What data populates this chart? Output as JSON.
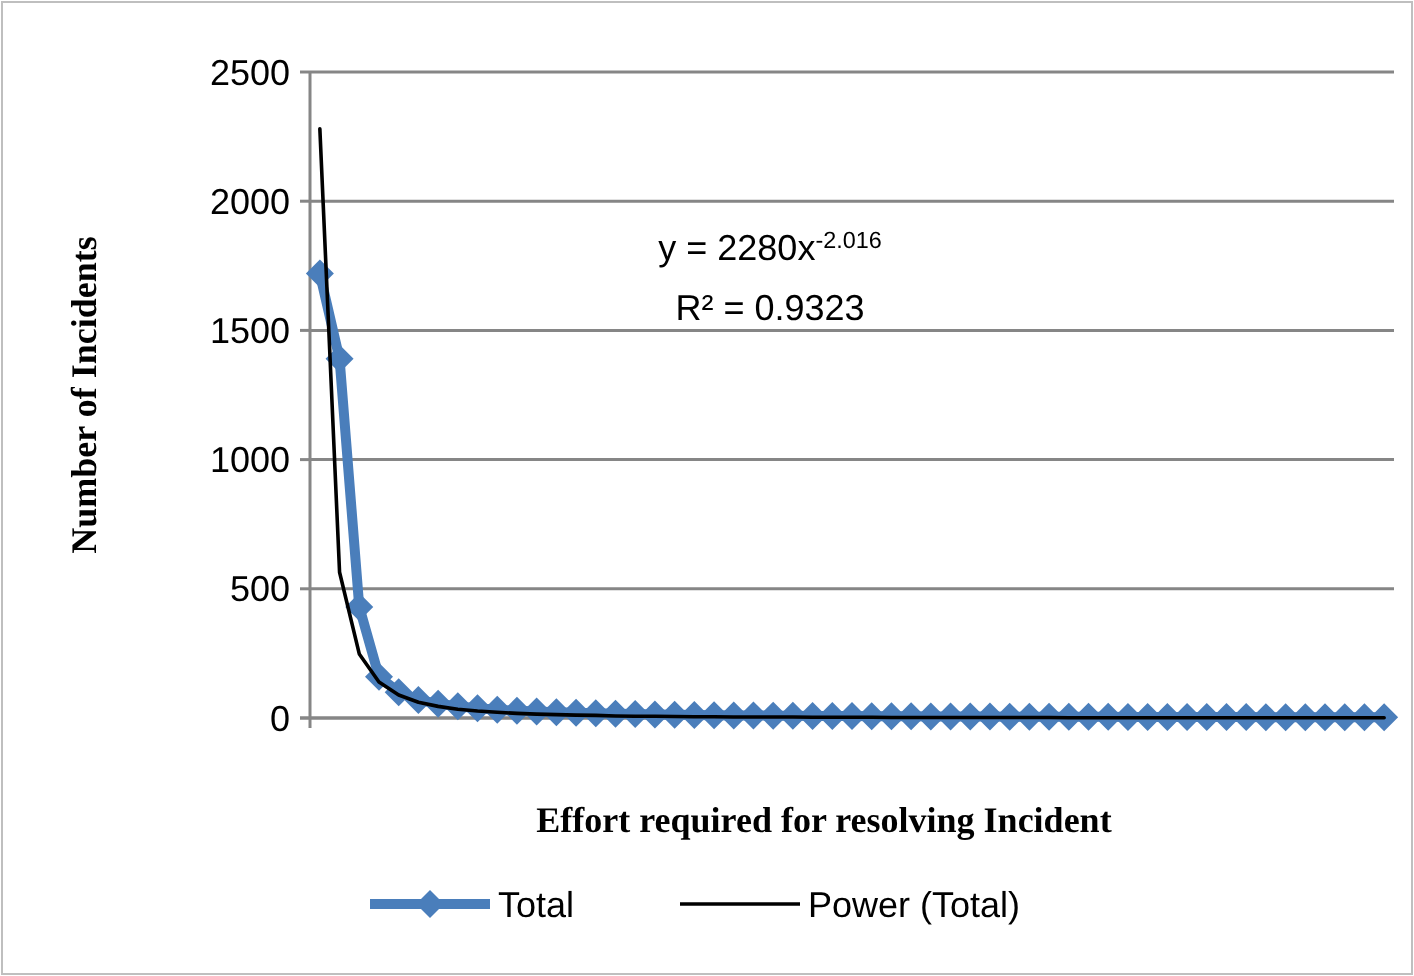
{
  "chart_data": {
    "type": "line",
    "xlabel": "Effort required for resolving Incident",
    "ylabel": "Number of Incidents",
    "categories": [
      null,
      null,
      null,
      null,
      null,
      null,
      null,
      null,
      null,
      null,
      null,
      null,
      null,
      null,
      null,
      null,
      null,
      null,
      null,
      null,
      null,
      null,
      null,
      null,
      null,
      null,
      null,
      null,
      null,
      null,
      null,
      null,
      null,
      null,
      null,
      null,
      null,
      null,
      null,
      null,
      null,
      null,
      null,
      null,
      null,
      null,
      null,
      null,
      null,
      null,
      null,
      null,
      null,
      null,
      null
    ],
    "ylim": [
      0,
      2500
    ],
    "yticks": [
      0,
      500,
      1000,
      1500,
      2000,
      2500
    ],
    "grid": "y",
    "legend": "bottom",
    "tick_labels": "y",
    "annotations": [
      "y = 2280x$^{-2.016}$",
      "R² = 0.9323"
    ],
    "series": [
      {
        "name": "Total",
        "color": "#4a7ebb",
        "marker": "diamond",
        "values": [
          1720,
          1390,
          430,
          160,
          100,
          70,
          55,
          45,
          38,
          32,
          28,
          25,
          22,
          20,
          18,
          16,
          15,
          14,
          13,
          12,
          11,
          10,
          10,
          9,
          9,
          8,
          8,
          8,
          7,
          7,
          7,
          6,
          6,
          6,
          6,
          5,
          5,
          5,
          5,
          5,
          5,
          4,
          4,
          4,
          4,
          4,
          4,
          4,
          3,
          3,
          3,
          3,
          3,
          3,
          3
        ]
      },
      {
        "name": "Power (Total)",
        "color": "#000000",
        "marker": "none",
        "values": [
          2280,
          564,
          248,
          139,
          89,
          61,
          45,
          34,
          27,
          22,
          18,
          15,
          13,
          11,
          10,
          8,
          7,
          7,
          6,
          5,
          5,
          4,
          4,
          4,
          4,
          3,
          3,
          3,
          3,
          2,
          2,
          2,
          2,
          2,
          2,
          2,
          2,
          2,
          1,
          1,
          1,
          1,
          1,
          1,
          1,
          1,
          1,
          1,
          1,
          1,
          1,
          1,
          1,
          1,
          1
        ]
      }
    ]
  }
}
